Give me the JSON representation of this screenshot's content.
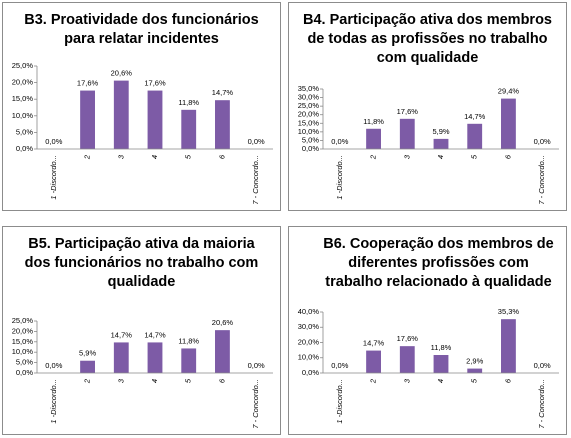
{
  "chart_data": [
    {
      "type": "bar",
      "title": "B3.  Proatividade dos funcionários para relatar incidentes",
      "categories": [
        "1 -Discordo...",
        "2",
        "3",
        "4",
        "5",
        "6",
        "7 - Concordo..."
      ],
      "values": [
        0.0,
        17.6,
        20.6,
        17.6,
        11.8,
        14.7,
        0.0
      ],
      "value_labels": [
        "0,0%",
        "17,6%",
        "20,6%",
        "17,6%",
        "11,8%",
        "14,7%",
        "0,0%"
      ],
      "color": "#7d5ba6",
      "ylim": [
        0,
        25
      ],
      "yticks": [
        {
          "value": 0,
          "label": "0,0%"
        },
        {
          "value": 5,
          "label": "5,0%"
        },
        {
          "value": 10,
          "label": "10,0%"
        },
        {
          "value": 15,
          "label": "15,0%"
        },
        {
          "value": 20,
          "label": "20,0%"
        },
        {
          "value": 25,
          "label": "25,0%"
        }
      ]
    },
    {
      "type": "bar",
      "title": "B4.  Participação ativa dos membros de todas as profissões no trabalho com qualidade",
      "categories": [
        "1 -Discordo...",
        "2",
        "3",
        "4",
        "5",
        "6",
        "7 - Concordo..."
      ],
      "values": [
        0.0,
        11.8,
        17.6,
        5.9,
        14.7,
        29.4,
        0.0
      ],
      "value_labels": [
        "0,0%",
        "11,8%",
        "17,6%",
        "5,9%",
        "14,7%",
        "29,4%",
        "0,0%"
      ],
      "color": "#7d5ba6",
      "ylim": [
        0,
        35
      ],
      "yticks": [
        {
          "value": 0,
          "label": "0,0%"
        },
        {
          "value": 5,
          "label": "5,0%"
        },
        {
          "value": 10,
          "label": "10,0%"
        },
        {
          "value": 15,
          "label": "15,0%"
        },
        {
          "value": 20,
          "label": "20,0%"
        },
        {
          "value": 25,
          "label": "25,0%"
        },
        {
          "value": 30,
          "label": "30,0%"
        },
        {
          "value": 35,
          "label": "35,0%"
        }
      ]
    },
    {
      "type": "bar",
      "title": "B5.  Participação ativa da maioria dos funcionários no trabalho com qualidade",
      "categories": [
        "1 -Discordo...",
        "2",
        "3",
        "4",
        "5",
        "6",
        "7 - Concordo..."
      ],
      "values": [
        0.0,
        5.9,
        14.7,
        14.7,
        11.8,
        20.6,
        0.0
      ],
      "value_labels": [
        "0,0%",
        "5,9%",
        "14,7%",
        "14,7%",
        "11,8%",
        "20,6%",
        "0,0%"
      ],
      "color": "#7d5ba6",
      "ylim": [
        0,
        25
      ],
      "yticks": [
        {
          "value": 0,
          "label": "0,0%"
        },
        {
          "value": 5,
          "label": "5,0%"
        },
        {
          "value": 10,
          "label": "10,0%"
        },
        {
          "value": 15,
          "label": "15,0%"
        },
        {
          "value": 20,
          "label": "20,0%"
        },
        {
          "value": 25,
          "label": "25,0%"
        }
      ]
    },
    {
      "type": "bar",
      "title": "B6.  Cooperação dos membros de diferentes profissões com trabalho relacionado à qualidade",
      "categories": [
        "1 -Discordo...",
        "2",
        "3",
        "4",
        "5",
        "6",
        "7 - Concordo..."
      ],
      "values": [
        0.0,
        14.7,
        17.6,
        11.8,
        2.9,
        35.3,
        0.0
      ],
      "value_labels": [
        "0,0%",
        "14,7%",
        "17,6%",
        "11,8%",
        "2,9%",
        "35,3%",
        "0,0%"
      ],
      "color": "#7d5ba6",
      "ylim": [
        0,
        40
      ],
      "yticks": [
        {
          "value": 0,
          "label": "0,0%"
        },
        {
          "value": 10,
          "label": "10,0%"
        },
        {
          "value": 20,
          "label": "20,0%"
        },
        {
          "value": 30,
          "label": "30,0%"
        },
        {
          "value": 40,
          "label": "40,0%"
        }
      ]
    }
  ]
}
